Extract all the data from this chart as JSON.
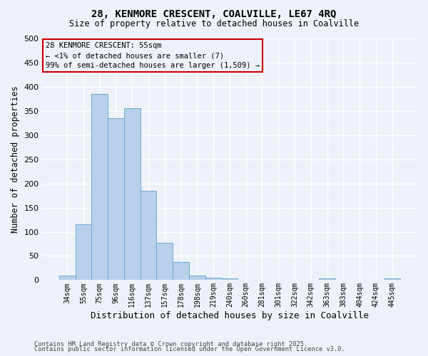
{
  "title1": "28, KENMORE CRESCENT, COALVILLE, LE67 4RQ",
  "title2": "Size of property relative to detached houses in Coalville",
  "xlabel": "Distribution of detached houses by size in Coalville",
  "ylabel": "Number of detached properties",
  "categories": [
    "34sqm",
    "55sqm",
    "75sqm",
    "96sqm",
    "116sqm",
    "137sqm",
    "157sqm",
    "178sqm",
    "198sqm",
    "219sqm",
    "240sqm",
    "260sqm",
    "281sqm",
    "301sqm",
    "322sqm",
    "342sqm",
    "363sqm",
    "383sqm",
    "404sqm",
    "424sqm",
    "445sqm"
  ],
  "values": [
    10,
    115,
    385,
    335,
    355,
    185,
    77,
    37,
    10,
    5,
    3,
    1,
    0,
    1,
    0,
    0,
    3,
    0,
    0,
    0,
    3
  ],
  "bar_color": "#b8d0ea",
  "bar_edge_color": "#6aaad4",
  "highlight_index": 1,
  "annotation_title": "28 KENMORE CRESCENT: 55sqm",
  "annotation_line1": "← <1% of detached houses are smaller (7)",
  "annotation_line2": "99% of semi-detached houses are larger (1,509) →",
  "annotation_color": "#cc0000",
  "ylim": [
    0,
    500
  ],
  "yticks": [
    0,
    50,
    100,
    150,
    200,
    250,
    300,
    350,
    400,
    450,
    500
  ],
  "footer1": "Contains HM Land Registry data © Crown copyright and database right 2025.",
  "footer2": "Contains public sector information licensed under the Open Government Licence v3.0.",
  "background_color": "#eef2f8",
  "grid_color": "#ffffff"
}
